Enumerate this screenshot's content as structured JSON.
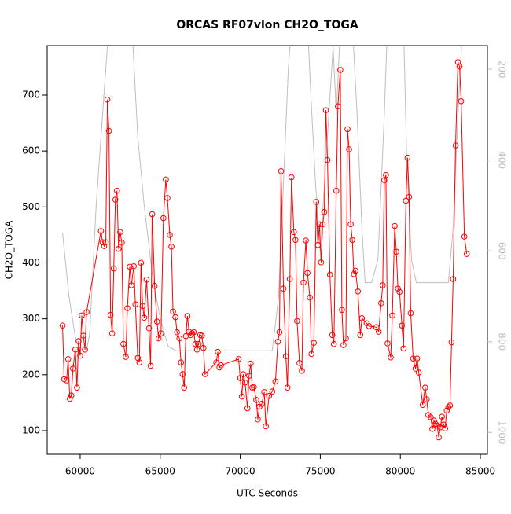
{
  "chart_data": {
    "type": "line",
    "title": "ORCAS RF07vlon CH2O_TOGA",
    "xlabel": "UTC Seconds",
    "ylabel": "CH2O_TOGA",
    "xlim": [
      57940,
      85440
    ],
    "ylim": [
      57.8,
      788.5
    ],
    "y2lim": [
      1048,
      148
    ],
    "xticks": [
      60000,
      65000,
      70000,
      75000,
      80000,
      85000
    ],
    "yticks": [
      100,
      200,
      300,
      400,
      500,
      600,
      700
    ],
    "y2ticks": [
      200,
      400,
      600,
      800,
      1000
    ],
    "series": [
      {
        "color": "#ff0000",
        "markers": true,
        "x": [
          58900,
          59000,
          59150,
          59250,
          59350,
          59450,
          59550,
          59700,
          59800,
          59900,
          60000,
          60100,
          60200,
          60300,
          60400,
          61300,
          61400,
          61500,
          61600,
          61700,
          61800,
          61900,
          62000,
          62100,
          62200,
          62300,
          62400,
          62500,
          62600,
          62700,
          62850,
          62950,
          63100,
          63200,
          63350,
          63450,
          63600,
          63700,
          63800,
          63900,
          64000,
          64150,
          64300,
          64400,
          64500,
          64650,
          64800,
          64900,
          65050,
          65200,
          65350,
          65450,
          65600,
          65700,
          65800,
          65950,
          66050,
          66200,
          66300,
          66400,
          66500,
          66600,
          66700,
          66800,
          66900,
          67000,
          67100,
          67200,
          67300,
          67400,
          67500,
          67600,
          67700,
          67800,
          68500,
          68600,
          68700,
          68800,
          69900,
          70000,
          70100,
          70200,
          70300,
          70450,
          70550,
          70650,
          70750,
          70850,
          71000,
          71100,
          71200,
          71350,
          71500,
          71600,
          71800,
          72000,
          72200,
          72350,
          72450,
          72550,
          72700,
          72850,
          72950,
          73100,
          73200,
          73350,
          73450,
          73550,
          73700,
          73850,
          73950,
          74100,
          74200,
          74350,
          74450,
          74600,
          74750,
          74850,
          74950,
          75050,
          75150,
          75250,
          75350,
          75450,
          75600,
          75750,
          75850,
          76000,
          76100,
          76250,
          76350,
          76450,
          76600,
          76700,
          76800,
          76900,
          77000,
          77100,
          77200,
          77350,
          77500,
          77600,
          77900,
          78050,
          78500,
          78650,
          78800,
          78900,
          79000,
          79100,
          79200,
          79400,
          79500,
          79650,
          79750,
          79850,
          79950,
          80100,
          80200,
          80350,
          80450,
          80550,
          80650,
          80800,
          80950,
          81050,
          81150,
          81400,
          81550,
          81650,
          81750,
          81900,
          82000,
          82100,
          82200,
          82300,
          82400,
          82500,
          82600,
          82700,
          82800,
          82900,
          83000,
          83100,
          83200,
          83300,
          83450,
          83600,
          83700,
          83800,
          84000,
          84150
        ],
        "values": [
          288,
          192,
          190,
          228,
          157,
          163,
          211,
          245,
          177,
          260,
          234,
          306,
          270,
          245,
          312,
          457,
          437,
          430,
          437,
          692,
          636,
          307,
          274,
          390,
          513,
          529,
          425,
          455,
          436,
          255,
          232,
          319,
          393,
          360,
          394,
          326,
          230,
          222,
          400,
          323,
          302,
          370,
          283,
          216,
          487,
          359,
          295,
          265,
          274,
          480,
          549,
          516,
          450,
          429,
          313,
          303,
          276,
          265,
          222,
          201,
          177,
          269,
          305,
          277,
          271,
          274,
          276,
          255,
          245,
          255,
          271,
          270,
          248,
          201,
          222,
          241,
          213,
          217,
          228,
          194,
          161,
          201,
          186,
          140,
          198,
          220,
          177,
          178,
          155,
          120,
          143,
          148,
          169,
          108,
          162,
          170,
          188,
          259,
          276,
          564,
          354,
          233,
          177,
          371,
          553,
          455,
          441,
          296,
          221,
          207,
          365,
          440,
          382,
          338,
          237,
          257,
          509,
          432,
          469,
          401,
          469,
          491,
          673,
          584,
          379,
          271,
          255,
          529,
          680,
          745,
          316,
          253,
          265,
          639,
          603,
          469,
          441,
          380,
          386,
          349,
          271,
          301,
          292,
          287,
          285,
          277,
          328,
          360,
          548,
          557,
          256,
          231,
          306,
          466,
          420,
          354,
          348,
          288,
          247,
          511,
          588,
          518,
          310,
          229,
          211,
          229,
          204,
          146,
          177,
          156,
          128,
          124,
          103,
          118,
          112,
          109,
          88,
          106,
          125,
          111,
          104,
          136,
          142,
          145,
          258,
          371,
          610,
          759,
          751,
          689,
          447,
          416
        ]
      },
      {
        "color": "#bebebe",
        "axis": "y2",
        "markers": false,
        "x": [
          58900,
          59300,
          59700,
          60000,
          60400,
          60600,
          61000,
          61500,
          61800,
          62800,
          63300,
          63600,
          64000,
          64500,
          65000,
          65500,
          66000,
          72000,
          72400,
          72700,
          73000,
          73200,
          74200,
          74400,
          74700,
          75000,
          75800,
          76000,
          76200,
          76500,
          77000,
          77300,
          77600,
          77800,
          78200,
          78600,
          79000,
          79200,
          80200,
          80400,
          80700,
          81000,
          83000,
          83300,
          83600,
          83900,
          84200
        ],
        "values": [
          560,
          700,
          790,
          820,
          820,
          780,
          500,
          250,
          100,
          100,
          150,
          350,
          500,
          650,
          750,
          810,
          820,
          820,
          700,
          450,
          200,
          100,
          100,
          250,
          450,
          600,
          150,
          300,
          150,
          100,
          100,
          300,
          550,
          670,
          670,
          620,
          300,
          100,
          100,
          400,
          620,
          670,
          670,
          550,
          300,
          100,
          50
        ]
      }
    ]
  }
}
